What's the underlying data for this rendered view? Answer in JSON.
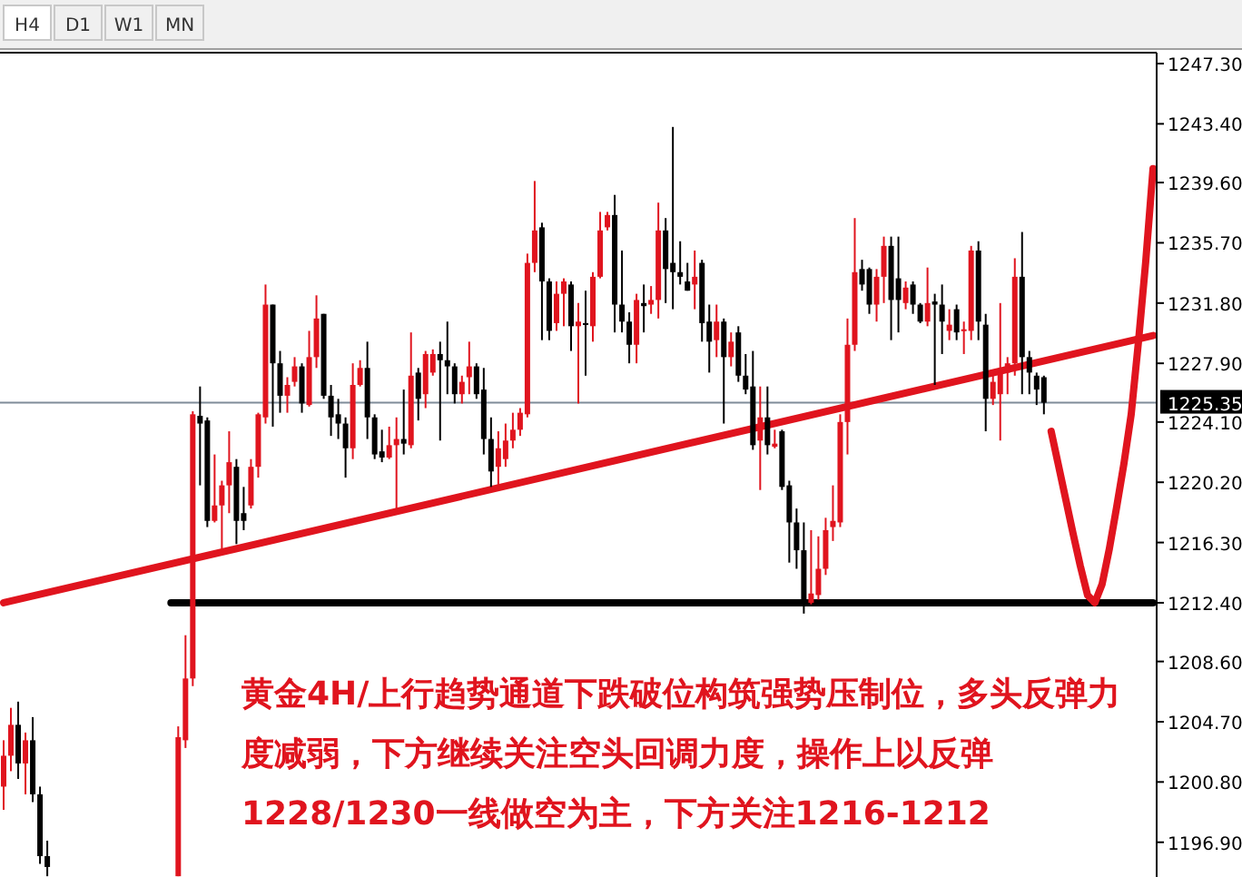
{
  "chart_data": {
    "type": "candlestick",
    "categories": [
      null,
      null,
      null,
      null,
      null,
      null,
      null,
      null,
      null,
      null,
      null,
      null,
      null,
      null,
      null,
      null,
      null,
      null,
      null,
      null,
      null,
      null,
      null,
      null,
      null,
      null,
      null,
      null,
      null,
      null,
      null,
      null,
      null,
      null,
      null,
      null,
      null,
      null,
      null,
      null,
      null,
      null,
      null,
      null,
      null,
      null,
      null,
      null,
      null,
      null,
      null,
      null,
      null,
      null,
      null,
      null,
      null,
      null,
      null,
      null,
      null,
      null,
      null,
      null,
      null,
      null,
      null,
      null,
      null,
      null,
      null,
      null,
      null,
      null,
      null,
      null,
      null,
      null,
      null,
      null,
      null,
      null,
      null,
      null,
      null,
      null,
      null,
      null,
      null,
      null,
      null,
      null,
      null,
      null,
      null,
      null,
      null,
      null,
      null,
      null,
      null,
      null,
      null,
      null,
      null,
      null,
      null,
      null,
      null,
      null,
      null,
      null,
      null,
      null,
      null,
      null,
      null,
      null,
      null,
      null,
      null,
      null,
      null,
      null,
      null,
      null,
      null,
      null,
      null,
      null,
      null,
      null,
      null,
      null,
      null,
      null,
      null,
      null,
      null,
      null,
      null,
      null,
      null,
      null,
      null,
      null,
      null,
      null,
      null,
      null,
      null,
      null,
      null,
      null,
      null,
      null,
      null,
      null,
      null
    ],
    "ohlc": [
      [
        1200.5,
        1203.5,
        1199,
        1202.5
      ],
      [
        1202.5,
        1205.6,
        1201.5,
        1204.5
      ],
      [
        1204.5,
        1206,
        1201,
        1202
      ],
      [
        1202,
        1204,
        1200,
        1203.5
      ],
      [
        1203.5,
        1205,
        1199.5,
        1200
      ],
      [
        1200,
        1200.5,
        1195.5,
        1196
      ],
      [
        1196,
        1197,
        1194.7,
        1195.3
      ],
      null,
      null,
      null,
      null,
      null,
      null,
      null,
      null,
      null,
      null,
      null,
      null,
      null,
      null,
      null,
      null,
      null,
      [
        1194.7,
        1204.4,
        1194.7,
        1203.7
      ],
      [
        1203.5,
        1210.3,
        1203,
        1207.5
      ],
      [
        1207.5,
        1224.8,
        1207,
        1224.6
      ],
      [
        1224.5,
        1226.4,
        1220,
        1224
      ],
      [
        1224.2,
        1224.4,
        1217.3,
        1217.7
      ],
      [
        1217.7,
        1222,
        1217.6,
        1218.7
      ],
      [
        1218.7,
        1220.3,
        1215.8,
        1220
      ],
      [
        1220,
        1223.5,
        1218.2,
        1221.5
      ],
      [
        1221.2,
        1221.7,
        1216.2,
        1217.7
      ],
      [
        1218.2,
        1219.9,
        1217.1,
        1217.7
      ],
      [
        1218.7,
        1221.7,
        1218.5,
        1221.2
      ],
      [
        1221.2,
        1224.7,
        1220.5,
        1224.6
      ],
      [
        1224.4,
        1233,
        1224,
        1231.7
      ],
      [
        1231.7,
        1231.7,
        1223.8,
        1227.9
      ],
      [
        1227.9,
        1228.7,
        1224.7,
        1225.8
      ],
      [
        1225.8,
        1227,
        1224.7,
        1226.5
      ],
      [
        1226.7,
        1228.3,
        1226.4,
        1227.7
      ],
      [
        1227.7,
        1227.9,
        1224.7,
        1225.3
      ],
      [
        1225.2,
        1230,
        1225.1,
        1228.3
      ],
      [
        1228.3,
        1232.3,
        1227.6,
        1230.8
      ],
      [
        1231.1,
        1231.1,
        1225.6,
        1225.8
      ],
      [
        1225.8,
        1226.5,
        1223.2,
        1224.4
      ],
      [
        1224.6,
        1225.6,
        1223,
        1224
      ],
      [
        1224,
        1224.4,
        1220.5,
        1222.4
      ],
      [
        1222.4,
        1227.9,
        1221.7,
        1226.5
      ],
      [
        1226.5,
        1228.1,
        1226.4,
        1227.6
      ],
      [
        1227.6,
        1229.3,
        1223,
        1224.4
      ],
      [
        1224.4,
        1224.6,
        1221.7,
        1222
      ],
      [
        1222.2,
        1223.6,
        1221.5,
        1221.8
      ],
      [
        1221.8,
        1223.8,
        1221.7,
        1222.6
      ],
      [
        1222.6,
        1224.4,
        1218.3,
        1223
      ],
      [
        1223,
        1226.2,
        1222,
        1222.7
      ],
      [
        1222.6,
        1229.9,
        1222.4,
        1227.1
      ],
      [
        1227.3,
        1227.6,
        1224.2,
        1225.6
      ],
      [
        1225.9,
        1228.7,
        1225,
        1228.5
      ],
      [
        1227.3,
        1228.8,
        1227.1,
        1228.5
      ],
      [
        1228.5,
        1229.3,
        1222.9,
        1228.1
      ],
      [
        1228.1,
        1230.6,
        1225.9,
        1227.7
      ],
      [
        1227.7,
        1227.9,
        1225.3,
        1225.9
      ],
      [
        1225.9,
        1227.1,
        1225.3,
        1226.7
      ],
      [
        1227,
        1229.3,
        1225.9,
        1227.7
      ],
      [
        1227.7,
        1227.9,
        1225.6,
        1225.9
      ],
      [
        1226.2,
        1227.6,
        1222,
        1223
      ],
      [
        1223,
        1224.4,
        1219.9,
        1220.9
      ],
      [
        1221.2,
        1223.5,
        1220,
        1222.4
      ],
      [
        1221.7,
        1224,
        1221.2,
        1222.9
      ],
      [
        1222.9,
        1224.7,
        1222.4,
        1223.6
      ],
      [
        1223.6,
        1225,
        1223.2,
        1224.7
      ],
      [
        1224.6,
        1235,
        1224.4,
        1234.4
      ],
      [
        1234.4,
        1239.7,
        1233.8,
        1236.5
      ],
      [
        1236.7,
        1237,
        1229.4,
        1233.2
      ],
      [
        1233.2,
        1233.4,
        1229.4,
        1230
      ],
      [
        1230.5,
        1233.2,
        1230,
        1232.4
      ],
      [
        1232.4,
        1233.4,
        1230.3,
        1233.2
      ],
      [
        1233,
        1233.2,
        1228.7,
        1230.3
      ],
      [
        1230.3,
        1231.8,
        1225.3,
        1230.6
      ],
      [
        1230.5,
        1232.6,
        1227.1,
        1230.4
      ],
      [
        1230.3,
        1233.8,
        1229.3,
        1233.5
      ],
      [
        1233.5,
        1237.7,
        1233.4,
        1236.5
      ],
      [
        1236.7,
        1237.7,
        1236.5,
        1237.5
      ],
      [
        1237.5,
        1238.8,
        1229.9,
        1231.7
      ],
      [
        1231.7,
        1235.2,
        1229.9,
        1230.6
      ],
      [
        1230.6,
        1231.2,
        1227.9,
        1229.1
      ],
      [
        1229.1,
        1232.4,
        1227.9,
        1232
      ],
      [
        1231.8,
        1233,
        1229.9,
        1231.6
      ],
      [
        1231.7,
        1232.9,
        1231.1,
        1232
      ],
      [
        1232,
        1238.3,
        1230.8,
        1236.5
      ],
      [
        1236.5,
        1237.3,
        1231.8,
        1234
      ],
      [
        1234.4,
        1243.2,
        1231.4,
        1233.8
      ],
      [
        1233.8,
        1235.8,
        1233,
        1233.5
      ],
      [
        1233.2,
        1234.4,
        1232.6,
        1232.6
      ],
      [
        1233,
        1235.2,
        1231.4,
        1233.5
      ],
      [
        1234.4,
        1234.6,
        1229.3,
        1230.5
      ],
      [
        1230.6,
        1231.7,
        1227.3,
        1229.3
      ],
      [
        1229.4,
        1231.7,
        1228.3,
        1230.6
      ],
      [
        1230.6,
        1230.8,
        1224,
        1228.3
      ],
      [
        1228.3,
        1229.9,
        1227.7,
        1229.3
      ],
      [
        1229.9,
        1230.3,
        1226.7,
        1227.1
      ],
      [
        1227.1,
        1228.5,
        1225.9,
        1226.2
      ],
      [
        1226.4,
        1228.7,
        1222.3,
        1222.6
      ],
      [
        1222.9,
        1226.4,
        1219.7,
        1224.4
      ],
      [
        1224.4,
        1226.4,
        1222,
        1222.6
      ],
      [
        1222.5,
        1223.6,
        1222.4,
        1222.7
      ],
      [
        1223.5,
        1223.6,
        1219.7,
        1219.9
      ],
      [
        1220,
        1220.3,
        1215,
        1217.6
      ],
      [
        1217.6,
        1218.5,
        1214.6,
        1215.8
      ],
      [
        1215.8,
        1217.6,
        1211.7,
        1212.3
      ],
      [
        1212.4,
        1217.1,
        1212.3,
        1213
      ],
      [
        1212.9,
        1216.7,
        1212.6,
        1214.6
      ],
      [
        1214.6,
        1217.9,
        1214.2,
        1217.1
      ],
      [
        1217.3,
        1220,
        1216.4,
        1217.7
      ],
      [
        1217.6,
        1224.6,
        1217.3,
        1224.1
      ],
      [
        1224.1,
        1230.8,
        1222,
        1229.1
      ],
      [
        1229.1,
        1237.3,
        1228.7,
        1233.8
      ],
      [
        1234,
        1234.6,
        1232.6,
        1233
      ],
      [
        1234,
        1234.1,
        1231.1,
        1231.7
      ],
      [
        1231.7,
        1234,
        1230.6,
        1233.5
      ],
      [
        1233.5,
        1236.1,
        1231.8,
        1235.5
      ],
      [
        1235.5,
        1236.1,
        1229.4,
        1232
      ],
      [
        1233.4,
        1236.1,
        1229.9,
        1232
      ],
      [
        1231.8,
        1233.2,
        1231.4,
        1232.8
      ],
      [
        1233,
        1233.2,
        1231.1,
        1231.7
      ],
      [
        1231.7,
        1231.8,
        1230.5,
        1230.6
      ],
      [
        1230.6,
        1234.1,
        1230.3,
        1231.8
      ],
      [
        1231.9,
        1232.4,
        1226.5,
        1231.7
      ],
      [
        1231.7,
        1233,
        1228.5,
        1230.6
      ],
      [
        1230,
        1231.4,
        1229.4,
        1230.4
      ],
      [
        1231.4,
        1231.7,
        1229.4,
        1229.9
      ],
      [
        1230,
        1230.6,
        1228.5,
        1230.1
      ],
      [
        1230,
        1235.5,
        1229.4,
        1235.2
      ],
      [
        1235.2,
        1235.8,
        1229.4,
        1230.6
      ],
      [
        1230.4,
        1231.1,
        1223.5,
        1225.6
      ],
      [
        1225.6,
        1227.1,
        1225.2,
        1226.7
      ],
      [
        1225.9,
        1231.8,
        1222.9,
        1227.3
      ],
      [
        1227.3,
        1228.3,
        1225.9,
        1227.9
      ],
      [
        1227.9,
        1234.7,
        1227.1,
        1233.5
      ],
      [
        1233.5,
        1236.4,
        1225.9,
        1228.3
      ],
      [
        1228.3,
        1228.7,
        1225.9,
        1227.3
      ],
      [
        1227.1,
        1227.3,
        1225.2,
        1226.2
      ],
      [
        1227,
        1227.1,
        1224.6,
        1225.35
      ],
      null,
      null,
      null,
      null,
      null,
      null,
      null,
      null,
      null,
      null,
      null,
      null,
      null,
      null,
      null
    ],
    "colors": [
      "#e0141e",
      "#e0141e",
      "#000000",
      "#e0141e",
      "#000000",
      "#000000",
      "#000000",
      null,
      null,
      null,
      null,
      null,
      null,
      null,
      null,
      null,
      null,
      null,
      null,
      null,
      null,
      null,
      null,
      null,
      "#e0141e",
      "#e0141e",
      "#e0141e",
      "#000000",
      "#000000",
      "#e0141e",
      "#e0141e",
      "#e0141e",
      "#000000",
      "#000000",
      "#e0141e",
      "#e0141e",
      "#e0141e",
      "#000000",
      "#000000",
      "#e0141e",
      "#e0141e",
      "#000000",
      "#e0141e",
      "#e0141e",
      "#000000",
      "#000000",
      "#000000",
      "#000000",
      "#e0141e",
      "#e0141e",
      "#000000",
      "#000000",
      "#000000",
      "#e0141e",
      "#e0141e",
      "#000000",
      "#e0141e",
      "#000000",
      "#e0141e",
      "#e0141e",
      "#000000",
      "#000000",
      "#000000",
      "#e0141e",
      "#e0141e",
      "#000000",
      "#000000",
      "#000000",
      "#e0141e",
      "#e0141e",
      "#e0141e",
      "#e0141e",
      "#e0141e",
      "#e0141e",
      "#000000",
      "#000000",
      "#e0141e",
      "#e0141e",
      "#000000",
      "#e0141e",
      "#000000",
      "#e0141e",
      "#e0141e",
      "#e0141e",
      "#000000",
      "#000000",
      "#000000",
      "#e0141e",
      "#000000",
      "#e0141e",
      "#e0141e",
      "#000000",
      "#000000",
      "#000000",
      "#000000",
      "#e0141e",
      "#000000",
      "#000000",
      "#e0141e",
      "#000000",
      "#e0141e",
      "#000000",
      "#000000",
      "#000000",
      "#e0141e",
      "#000000",
      "#e0141e",
      "#000000",
      "#000000",
      "#000000",
      "#000000",
      "#e0141e",
      "#e0141e",
      "#e0141e",
      "#e0141e",
      "#e0141e",
      "#e0141e",
      "#e0141e",
      "#000000",
      "#000000",
      "#e0141e",
      "#e0141e",
      "#000000",
      "#000000",
      "#e0141e",
      "#000000",
      "#000000",
      "#e0141e",
      "#000000",
      "#000000",
      "#e0141e",
      "#000000",
      "#e0141e",
      "#e0141e",
      "#000000",
      "#000000",
      "#e0141e",
      "#e0141e",
      "#e0141e",
      "#e0141e",
      "#000000",
      "#000000",
      "#000000",
      "#000000",
      null,
      null,
      null,
      null,
      null,
      null,
      null,
      null,
      null,
      null,
      null,
      null,
      null,
      null,
      null
    ],
    "series": [
      {
        "type": "line",
        "color": "#e0141e",
        "values": [
          1212.4,
          null,
          null,
          null,
          null,
          null,
          null,
          null,
          null,
          null,
          null,
          null,
          null,
          null,
          null,
          null,
          null,
          null,
          null,
          null,
          null,
          null,
          null,
          null,
          null,
          null,
          null,
          null,
          null,
          null,
          null,
          null,
          null,
          null,
          null,
          null,
          null,
          null,
          null,
          null,
          null,
          null,
          null,
          null,
          null,
          null,
          null,
          null,
          null,
          null,
          null,
          null,
          null,
          null,
          null,
          null,
          null,
          null,
          null,
          null,
          null,
          null,
          null,
          null,
          null,
          null,
          null,
          null,
          null,
          null,
          null,
          null,
          null,
          null,
          null,
          null,
          null,
          null,
          null,
          null,
          null,
          null,
          null,
          null,
          null,
          null,
          null,
          null,
          null,
          null,
          null,
          null,
          null,
          null,
          null,
          null,
          null,
          null,
          null,
          null,
          null,
          null,
          null,
          null,
          null,
          null,
          null,
          null,
          null,
          null,
          null,
          null,
          null,
          null,
          null,
          null,
          null,
          null,
          null,
          null,
          null,
          null,
          null,
          null,
          null,
          null,
          null,
          null,
          null,
          null,
          null,
          null,
          null,
          null,
          null,
          null,
          null,
          null,
          null,
          null,
          null,
          null,
          null,
          null,
          null,
          null,
          null,
          null,
          null,
          null,
          null,
          null,
          null,
          null,
          null,
          null,
          null,
          null,
          1229.7
        ]
      },
      {
        "type": "line",
        "color": "#000000",
        "values": [
          null,
          null,
          null,
          null,
          null,
          null,
          null,
          null,
          null,
          null,
          null,
          null,
          null,
          null,
          null,
          null,
          null,
          null,
          null,
          null,
          null,
          null,
          null,
          1212.4,
          null,
          null,
          null,
          null,
          null,
          null,
          null,
          null,
          null,
          null,
          null,
          null,
          null,
          null,
          null,
          null,
          null,
          null,
          null,
          null,
          null,
          null,
          null,
          null,
          null,
          null,
          null,
          null,
          null,
          null,
          null,
          null,
          null,
          null,
          null,
          null,
          null,
          null,
          null,
          null,
          null,
          null,
          null,
          null,
          null,
          null,
          null,
          null,
          null,
          null,
          null,
          null,
          null,
          null,
          null,
          null,
          null,
          null,
          null,
          null,
          null,
          null,
          null,
          null,
          null,
          null,
          null,
          null,
          null,
          null,
          null,
          null,
          null,
          null,
          null,
          null,
          null,
          null,
          null,
          null,
          null,
          null,
          null,
          null,
          null,
          null,
          null,
          null,
          null,
          null,
          null,
          null,
          null,
          null,
          null,
          null,
          null,
          null,
          null,
          null,
          null,
          null,
          null,
          null,
          null,
          null,
          null,
          null,
          null,
          null,
          null,
          null,
          null,
          null,
          null,
          null,
          null,
          null,
          null,
          null,
          null,
          null,
          null,
          null,
          null,
          null,
          null,
          null,
          null,
          null,
          null,
          null,
          null,
          null,
          1212.4
        ]
      },
      {
        "type": "line",
        "color": "#e0141e",
        "values": [
          null,
          null,
          null,
          null,
          null,
          null,
          null,
          null,
          null,
          null,
          null,
          null,
          null,
          null,
          null,
          null,
          null,
          null,
          null,
          null,
          null,
          null,
          null,
          null,
          null,
          null,
          null,
          null,
          null,
          null,
          null,
          null,
          null,
          null,
          null,
          null,
          null,
          null,
          null,
          null,
          null,
          null,
          null,
          null,
          null,
          null,
          null,
          null,
          null,
          null,
          null,
          null,
          null,
          null,
          null,
          null,
          null,
          null,
          null,
          null,
          null,
          null,
          null,
          null,
          null,
          null,
          null,
          null,
          null,
          null,
          null,
          null,
          null,
          null,
          null,
          null,
          null,
          null,
          null,
          null,
          null,
          null,
          null,
          null,
          null,
          null,
          null,
          null,
          null,
          null,
          null,
          null,
          null,
          null,
          null,
          null,
          null,
          null,
          null,
          null,
          null,
          null,
          null,
          null,
          null,
          null,
          null,
          null,
          null,
          null,
          null,
          null,
          null,
          null,
          null,
          null,
          null,
          null,
          null,
          null,
          null,
          null,
          null,
          null,
          null,
          null,
          null,
          null,
          null,
          null,
          null,
          null,
          null,
          null,
          null,
          null,
          null,
          null,
          null,
          null,
          null,
          null,
          null,
          null,
          1223.5,
          1221.3,
          1219.1,
          1216.9,
          1214.8,
          1212.9,
          1212.4,
          1213.6,
          1215.9,
          1218.6,
          1221.4,
          1224.6,
          1229.3,
          1234.5,
          1240.5
        ]
      }
    ],
    "ylim": [
      1194.65,
      1247.89
    ],
    "yticks": [
      {
        "value": 1247.3,
        "label": "1247.30"
      },
      {
        "value": 1243.4,
        "label": "1243.40"
      },
      {
        "value": 1239.6,
        "label": "1239.60"
      },
      {
        "value": 1235.7,
        "label": "1235.70"
      },
      {
        "value": 1231.8,
        "label": "1231.80"
      },
      {
        "value": 1227.9,
        "label": "1227.90"
      },
      {
        "value": 1224.1,
        "label": "1224.10"
      },
      {
        "value": 1220.2,
        "label": "1220.20"
      },
      {
        "value": 1216.3,
        "label": "1216.30"
      },
      {
        "value": 1212.4,
        "label": "1212.40"
      },
      {
        "value": 1208.6,
        "label": "1208.60"
      },
      {
        "value": 1204.7,
        "label": "1204.70"
      },
      {
        "value": 1200.8,
        "label": "1200.80"
      },
      {
        "value": 1196.9,
        "label": "1196.90"
      }
    ],
    "ref_lines": [
      {
        "axis": "y",
        "value": 1225.35,
        "label": "1225.35",
        "color": "#7f8c99"
      }
    ],
    "tick_labels": "y",
    "annotations": [
      "H4",
      "D1",
      "W1",
      "MN",
      "黄金4H/上行趋势通道下跌破位构筑强势压制位，多头反弹力度减弱，下方继续关注空头回调力度，操作上以反弹1228/1230一线做空为主，下方关注1216-1212"
    ]
  }
}
